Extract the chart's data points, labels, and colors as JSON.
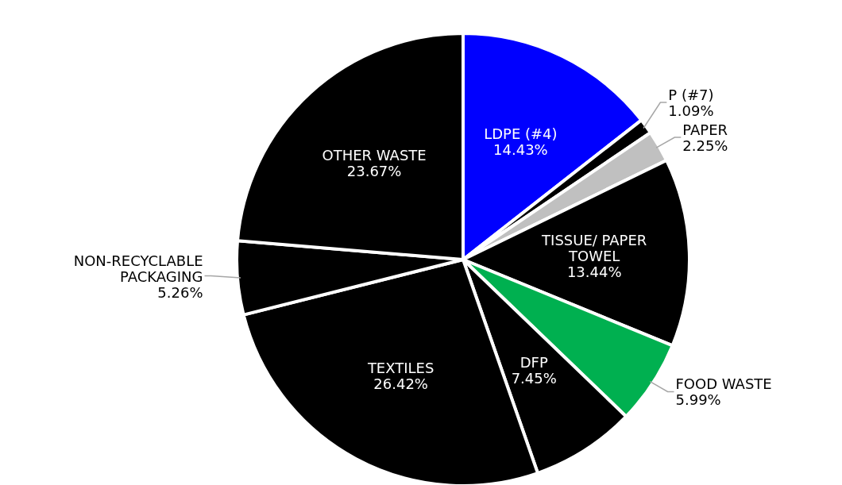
{
  "chart_data": {
    "type": "pie",
    "categories": [
      "LDPE (#4)",
      "P (#7)",
      "PAPER",
      "TISSUE/ PAPER TOWEL",
      "FOOD WASTE",
      "DFP",
      "TEXTILES",
      "NON-RECYCLABLE PACKAGING",
      "OTHER WASTE"
    ],
    "values": [
      14.43,
      1.09,
      2.25,
      13.44,
      5.99,
      7.45,
      26.42,
      5.26,
      23.67
    ],
    "value_labels": [
      "14.43%",
      "1.09%",
      "2.25%",
      "13.44%",
      "5.99%",
      "7.45%",
      "26.42%",
      "5.26%",
      "23.67%"
    ],
    "colors": [
      "#0000ff",
      "#000000",
      "#c0c0c0",
      "#000000",
      "#00b050",
      "#000000",
      "#000000",
      "#000000",
      "#000000"
    ]
  }
}
